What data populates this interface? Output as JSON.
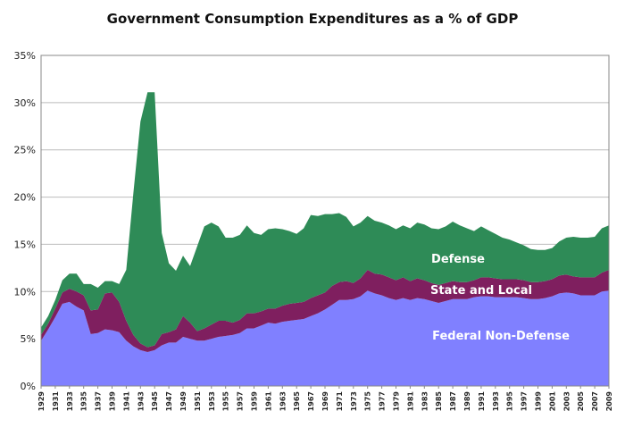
{
  "chart_data": {
    "type": "area",
    "stacked": true,
    "title": "Government Consumption Expenditures as a % of GDP",
    "xlabel": "",
    "ylabel": "",
    "ylim": [
      0,
      35
    ],
    "yticks": [
      "0%",
      "5%",
      "10%",
      "15%",
      "20%",
      "25%",
      "30%",
      "35%"
    ],
    "ytick_values": [
      0,
      5,
      10,
      15,
      20,
      25,
      30,
      35
    ],
    "grid": true,
    "legend": "inline labels",
    "xticks": [
      "1929",
      "1931",
      "1933",
      "1935",
      "1937",
      "1939",
      "1941",
      "1943",
      "1945",
      "1947",
      "1949",
      "1951",
      "1953",
      "1955",
      "1957",
      "1959",
      "1961",
      "1963",
      "1965",
      "1967",
      "1969",
      "1971",
      "1973",
      "1975",
      "1977",
      "1979",
      "1981",
      "1983",
      "1985",
      "1987",
      "1989",
      "1991",
      "1993",
      "1995",
      "1997",
      "1999",
      "2001",
      "2003",
      "2005",
      "2007",
      "2009"
    ],
    "x": [
      1929,
      1930,
      1931,
      1932,
      1933,
      1934,
      1935,
      1936,
      1937,
      1938,
      1939,
      1940,
      1941,
      1942,
      1943,
      1944,
      1945,
      1946,
      1947,
      1948,
      1949,
      1950,
      1951,
      1952,
      1953,
      1954,
      1955,
      1956,
      1957,
      1958,
      1959,
      1960,
      1961,
      1962,
      1963,
      1964,
      1965,
      1966,
      1967,
      1968,
      1969,
      1970,
      1971,
      1972,
      1973,
      1974,
      1975,
      1976,
      1977,
      1978,
      1979,
      1980,
      1981,
      1982,
      1983,
      1984,
      1985,
      1986,
      1987,
      1988,
      1989,
      1990,
      1991,
      1992,
      1993,
      1994,
      1995,
      1996,
      1997,
      1998,
      1999,
      2000,
      2001,
      2002,
      2003,
      2004,
      2005,
      2006,
      2007,
      2008,
      2009
    ],
    "series": [
      {
        "name": "Federal Non-Defense",
        "color": "#8080ff",
        "values": [
          4.8,
          6.0,
          7.3,
          8.7,
          8.9,
          8.4,
          8.0,
          5.5,
          5.6,
          6.0,
          5.9,
          5.7,
          4.8,
          4.2,
          3.8,
          3.6,
          3.8,
          4.3,
          4.6,
          4.6,
          5.2,
          5.0,
          4.8,
          4.8,
          5.0,
          5.2,
          5.3,
          5.4,
          5.6,
          6.1,
          6.1,
          6.4,
          6.7,
          6.6,
          6.8,
          6.9,
          7.0,
          7.1,
          7.4,
          7.7,
          8.1,
          8.6,
          9.1,
          9.1,
          9.2,
          9.5,
          10.1,
          9.8,
          9.6,
          9.3,
          9.1,
          9.3,
          9.1,
          9.3,
          9.2,
          9.0,
          8.8,
          9.0,
          9.2,
          9.2,
          9.2,
          9.4,
          9.5,
          9.5,
          9.4,
          9.4,
          9.4,
          9.4,
          9.3,
          9.2,
          9.2,
          9.3,
          9.5,
          9.8,
          9.9,
          9.8,
          9.6,
          9.6,
          9.6,
          10.0,
          10.1
        ]
      },
      {
        "name": "State and Local",
        "color": "#7f1f5f",
        "values": [
          0.6,
          0.6,
          0.9,
          1.2,
          1.4,
          1.6,
          1.6,
          2.5,
          2.5,
          3.8,
          4.0,
          3.2,
          2.1,
          1.2,
          0.7,
          0.5,
          0.5,
          1.2,
          1.1,
          1.4,
          2.2,
          1.7,
          1.0,
          1.3,
          1.5,
          1.7,
          1.6,
          1.3,
          1.4,
          1.6,
          1.6,
          1.5,
          1.5,
          1.6,
          1.7,
          1.8,
          1.8,
          1.8,
          1.9,
          1.9,
          1.8,
          2.0,
          1.9,
          2.0,
          1.7,
          1.9,
          2.2,
          2.1,
          2.2,
          2.2,
          2.1,
          2.2,
          2.0,
          2.1,
          2.0,
          1.9,
          1.9,
          1.9,
          1.9,
          1.8,
          1.8,
          1.8,
          2.0,
          2.0,
          2.0,
          1.9,
          1.9,
          1.9,
          1.9,
          1.8,
          1.8,
          1.8,
          1.8,
          1.9,
          1.9,
          1.8,
          1.9,
          1.9,
          1.9,
          2.0,
          2.2
        ]
      },
      {
        "name": "Defense",
        "color": "#2e8b57",
        "values": [
          0.8,
          0.8,
          0.9,
          1.3,
          1.6,
          1.9,
          1.2,
          2.8,
          2.3,
          1.3,
          1.2,
          1.9,
          5.4,
          15.0,
          23.5,
          27.0,
          26.8,
          10.7,
          7.3,
          6.2,
          6.4,
          6.0,
          9.0,
          10.8,
          10.8,
          10.0,
          8.8,
          9.0,
          9.0,
          9.3,
          8.5,
          8.1,
          8.4,
          8.5,
          8.1,
          7.7,
          7.3,
          7.8,
          8.8,
          8.4,
          8.3,
          7.6,
          7.3,
          6.8,
          6.0,
          5.9,
          5.7,
          5.6,
          5.5,
          5.5,
          5.4,
          5.5,
          5.6,
          5.9,
          5.9,
          5.8,
          5.9,
          6.0,
          6.3,
          6.0,
          5.7,
          5.2,
          5.4,
          5.0,
          4.7,
          4.4,
          4.2,
          3.9,
          3.7,
          3.5,
          3.4,
          3.3,
          3.3,
          3.6,
          3.9,
          4.2,
          4.2,
          4.2,
          4.3,
          4.7,
          4.7
        ]
      }
    ],
    "series_label_text": {
      "federal": "Federal Non-Defense",
      "state": "State and Local",
      "defense": "Defense"
    },
    "background": "#ffffff"
  }
}
